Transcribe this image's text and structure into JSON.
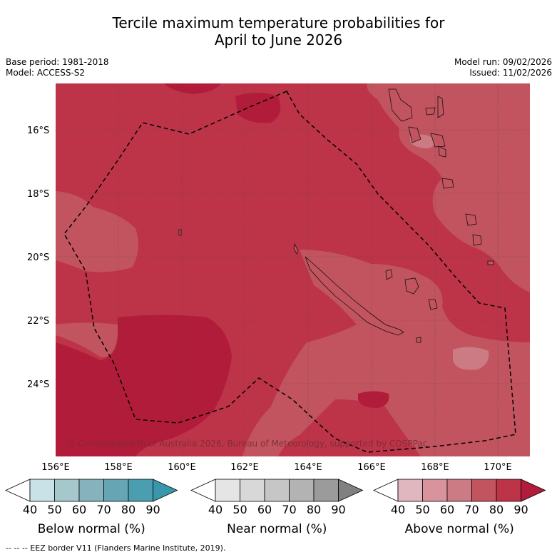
{
  "title_line1": "Tercile maximum temperature probabilities for",
  "title_line2": "April to June 2026",
  "base_period": "Base period: 1981-2018",
  "model": "Model: ACCESS-S2",
  "model_run": "Model run: 09/02/2026",
  "issued": "Issued: 11/02/2026",
  "copyright": "© Commonwealth of Australia 2026, Bureau of Meteorology, supported by COSPPac",
  "footer": "--  --  -- EEZ border V11 (Flanders Marine Institute, 2019).",
  "lat_labels": [
    "16°S",
    "18°S",
    "20°S",
    "22°S",
    "24°S"
  ],
  "lon_labels": [
    "156°E",
    "158°E",
    "160°E",
    "162°E",
    "164°E",
    "166°E",
    "168°E",
    "170°E"
  ],
  "colorbars": [
    {
      "label": "Below normal (%)",
      "ticks": [
        "40",
        "50",
        "60",
        "70",
        "80",
        "90"
      ],
      "colors": [
        "#ffffff",
        "#c8e2e8",
        "#a6c8cd",
        "#86b2bd",
        "#66a5b3",
        "#4a9eb0",
        "#3a97ab"
      ]
    },
    {
      "label": "Near normal (%)",
      "ticks": [
        "40",
        "50",
        "60",
        "70",
        "80",
        "90"
      ],
      "colors": [
        "#ffffff",
        "#e5e5e5",
        "#d8d8d8",
        "#c6c6c6",
        "#b3b3b3",
        "#9b9b9b",
        "#808080"
      ]
    },
    {
      "label": "Above normal (%)",
      "ticks": [
        "40",
        "50",
        "60",
        "70",
        "80",
        "90"
      ],
      "colors": [
        "#ffffff",
        "#e0b7bf",
        "#d9939c",
        "#cc7a83",
        "#c1545f",
        "#bd3448",
        "#b21c3b"
      ]
    }
  ],
  "palette": {
    "above_70": "#c1545f",
    "above_80": "#bd3448",
    "above_90": "#b21c3b",
    "above_60": "#cc7a83"
  }
}
